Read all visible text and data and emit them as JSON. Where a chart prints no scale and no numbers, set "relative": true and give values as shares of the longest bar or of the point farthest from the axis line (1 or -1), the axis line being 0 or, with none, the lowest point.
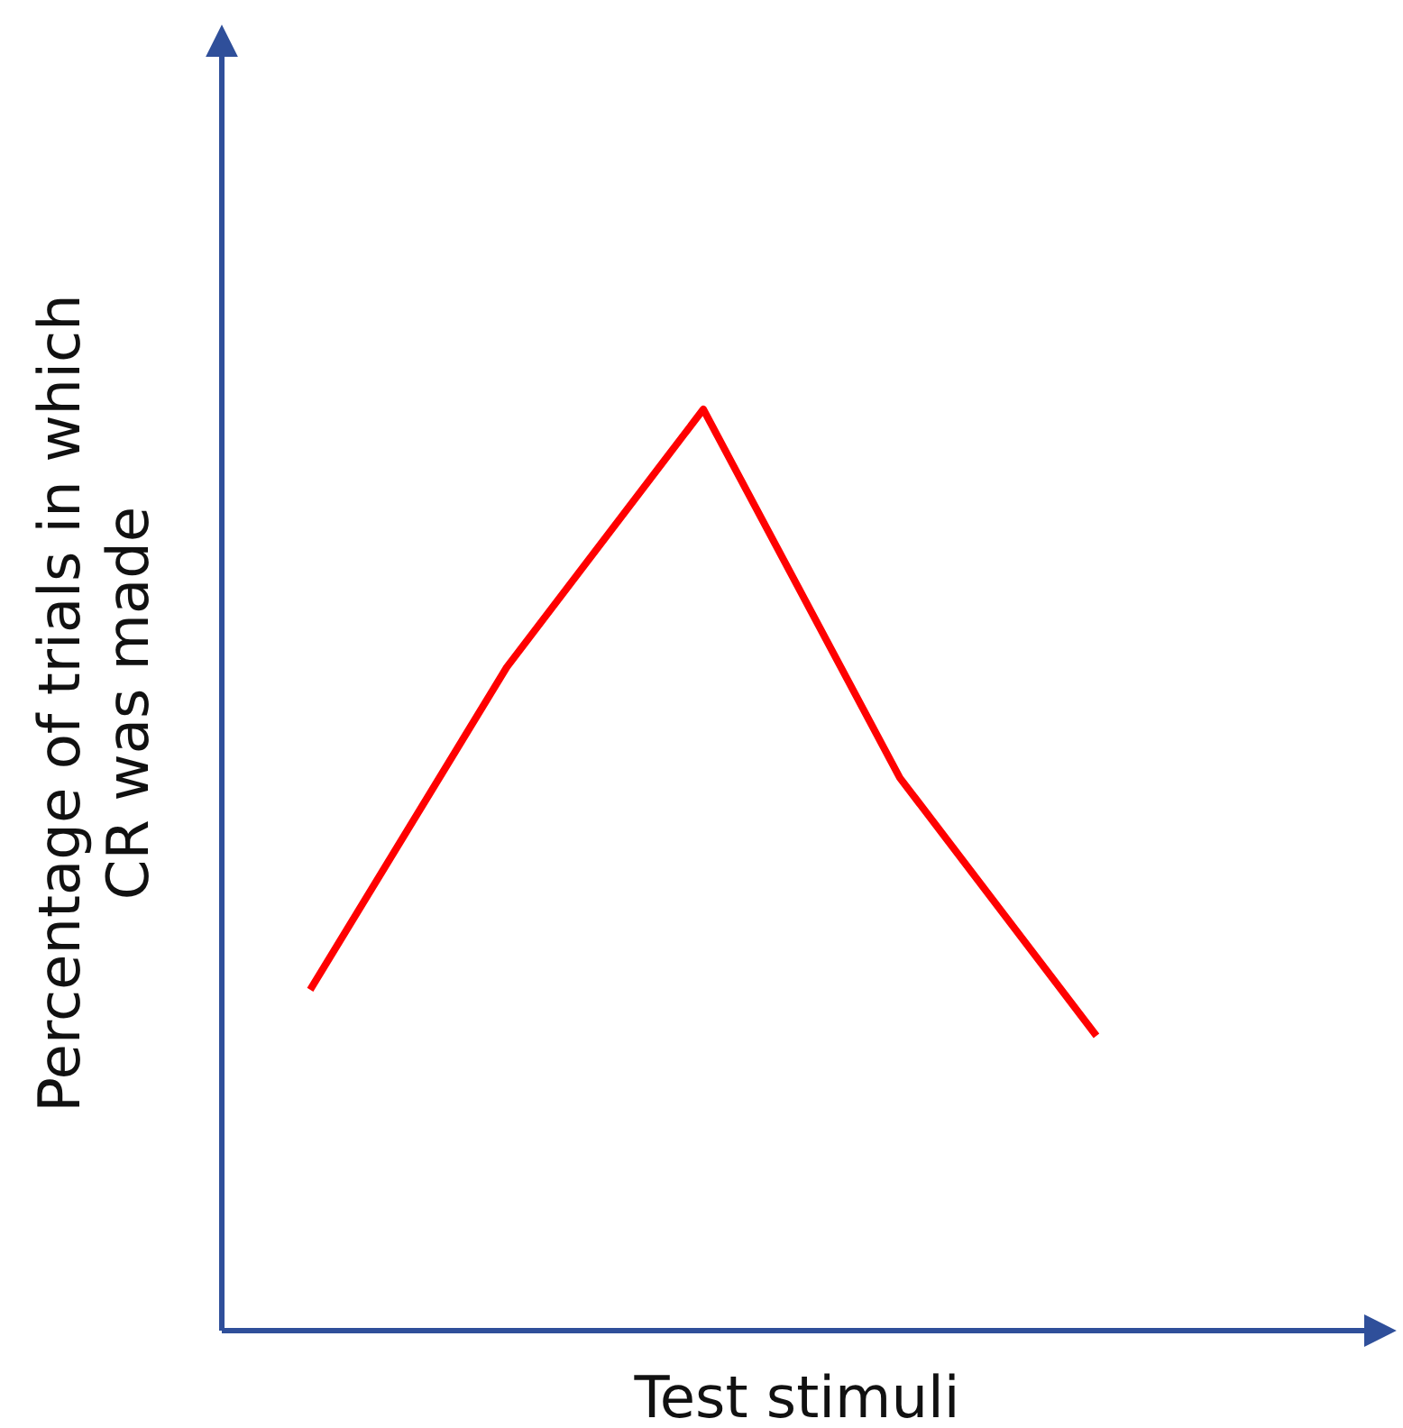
{
  "chart_data": {
    "type": "line",
    "xlabel": "Test stimuli",
    "ylabel": "Percentage of trials in which CR was made",
    "relative": true,
    "categories": [
      null,
      null,
      null,
      null,
      null
    ],
    "series": [
      {
        "color": "#ff0000",
        "values": [
          0.37,
          0.72,
          1,
          0.6,
          0.32
        ]
      }
    ],
    "marker": "none",
    "line_style": "solid"
  }
}
